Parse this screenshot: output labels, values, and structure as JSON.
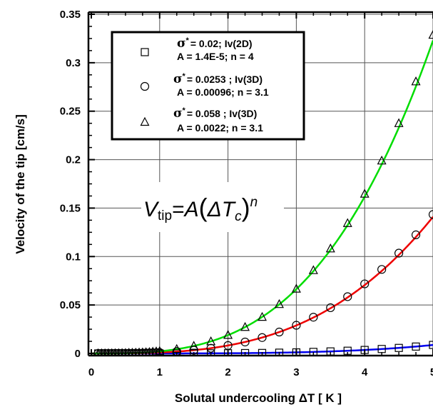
{
  "chart_data": {
    "type": "scatter",
    "xlabel": "Solutal undercooling ΔT [ K ]",
    "ylabel": "Velocity of the tip [cm/s]",
    "xlim": [
      0,
      5
    ],
    "ylim": [
      0,
      0.35
    ],
    "x_ticks": [
      "0",
      "1",
      "2",
      "3",
      "4",
      "5"
    ],
    "y_ticks": [
      "0",
      "0.05",
      "0.1",
      "0.15",
      "0.2",
      "0.25",
      "0.3",
      "0.35"
    ],
    "grid": true,
    "legend_position": "top-left",
    "equation": {
      "lhs_var": "V",
      "lhs_sub": "tip",
      "eq": "=",
      "rhs_coef": "A",
      "rhs_var": "ΔT",
      "rhs_sub": "c",
      "rhs_exp": "n"
    },
    "series": [
      {
        "marker": "square",
        "fit_color": "#0000ee",
        "legend_sigma": "σ",
        "legend_star": "*",
        "legend_line1": "= 0.02; Iv(2D)",
        "legend_line2": "A = 1.4E-5;  n = 4",
        "A": 1.4e-05,
        "n": 4,
        "x": [
          0.1,
          0.15,
          0.2,
          0.25,
          0.3,
          0.35,
          0.4,
          0.45,
          0.5,
          0.55,
          0.6,
          0.65,
          0.7,
          0.75,
          0.8,
          0.85,
          0.9,
          0.95,
          1.0,
          1.25,
          1.5,
          1.75,
          2.0,
          2.25,
          2.5,
          2.75,
          3.0,
          3.25,
          3.5,
          3.75,
          4.0,
          4.25,
          4.5,
          4.75,
          5.0
        ],
        "y": [
          0.0,
          0.0,
          0.0,
          0.0,
          0.0,
          0.0,
          0.0,
          0.0,
          0.0,
          0.0,
          0.0,
          0.0,
          0.0,
          0.0,
          0.0,
          0.0,
          0.0,
          0.0,
          0.0,
          0.0,
          0.0001,
          0.0001,
          0.0002,
          0.0004,
          0.0005,
          0.0008,
          0.0011,
          0.0016,
          0.0021,
          0.0028,
          0.0036,
          0.0046,
          0.0057,
          0.0071,
          0.0088
        ]
      },
      {
        "marker": "circle",
        "fit_color": "#ee0000",
        "legend_sigma": "σ",
        "legend_star": "*",
        "legend_line1": "= 0.0253 ; Iv(3D)",
        "legend_line2": "A = 0.00096;  n = 3.1",
        "A": 0.00096,
        "n": 3.1,
        "x": [
          0.1,
          0.15,
          0.2,
          0.25,
          0.3,
          0.35,
          0.4,
          0.45,
          0.5,
          0.55,
          0.6,
          0.65,
          0.7,
          0.75,
          0.8,
          0.85,
          0.9,
          0.95,
          1.0,
          1.25,
          1.5,
          1.75,
          2.0,
          2.25,
          2.5,
          2.75,
          3.0,
          3.25,
          3.5,
          3.75,
          4.0,
          4.25,
          4.5,
          4.75,
          5.0
        ],
        "y": [
          0.0,
          0.0,
          0.0,
          0.0,
          0.0,
          0.0001,
          0.0001,
          0.0001,
          0.0001,
          0.0002,
          0.0002,
          0.0003,
          0.0003,
          0.0004,
          0.0005,
          0.0006,
          0.0007,
          0.0008,
          0.001,
          0.002,
          0.0033,
          0.0054,
          0.0082,
          0.0118,
          0.0164,
          0.0221,
          0.0291,
          0.0374,
          0.0472,
          0.0586,
          0.0718,
          0.0867,
          0.1035,
          0.1224,
          0.1434
        ]
      },
      {
        "marker": "triangle",
        "fit_color": "#00dd00",
        "legend_sigma": "σ",
        "legend_star": "*",
        "legend_line1": "= 0.058 ; Iv(3D)",
        "legend_line2": "A = 0.0022;  n = 3.1",
        "A": 0.0022,
        "n": 3.1,
        "x": [
          0.1,
          0.15,
          0.2,
          0.25,
          0.3,
          0.35,
          0.4,
          0.45,
          0.5,
          0.55,
          0.6,
          0.65,
          0.7,
          0.75,
          0.8,
          0.85,
          0.9,
          0.95,
          1.0,
          1.25,
          1.5,
          1.75,
          2.0,
          2.25,
          2.5,
          2.75,
          3.0,
          3.25,
          3.5,
          3.75,
          4.0,
          4.25,
          4.5,
          4.75,
          5.0
        ],
        "y": [
          0.0,
          0.0,
          0.0,
          0.0001,
          0.0001,
          0.0001,
          0.0001,
          0.0002,
          0.0003,
          0.0004,
          0.0005,
          0.0006,
          0.0008,
          0.0009,
          0.0011,
          0.0013,
          0.0016,
          0.0019,
          0.0022,
          0.0044,
          0.0077,
          0.0123,
          0.0189,
          0.0271,
          0.0375,
          0.0507,
          0.0666,
          0.0857,
          0.1081,
          0.1343,
          0.1646,
          0.1988,
          0.2374,
          0.2805,
          0.3286
        ]
      }
    ]
  }
}
